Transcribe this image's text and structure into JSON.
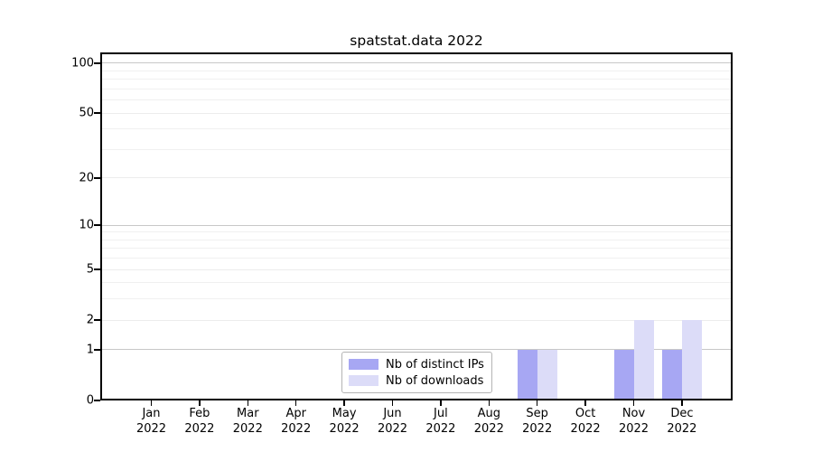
{
  "chart_data": {
    "type": "bar",
    "title": "spatstat.data 2022",
    "categories": [
      "Jan 2022",
      "Feb 2022",
      "Mar 2022",
      "Apr 2022",
      "May 2022",
      "Jun 2022",
      "Jul 2022",
      "Aug 2022",
      "Sep 2022",
      "Oct 2022",
      "Nov 2022",
      "Dec 2022"
    ],
    "series": [
      {
        "name": "Nb of distinct IPs",
        "color": "#a7a7f3",
        "values": [
          0,
          0,
          0,
          0,
          0,
          0,
          0,
          0,
          1,
          0,
          1,
          1
        ]
      },
      {
        "name": "Nb of downloads",
        "color": "#dcdcf8",
        "values": [
          0,
          0,
          0,
          0,
          0,
          0,
          0,
          0,
          1,
          0,
          2,
          2
        ]
      }
    ],
    "xlabel": "",
    "ylabel": "",
    "yscale": "log1p",
    "ylim": [
      0,
      115
    ],
    "y_ticks": [
      0,
      1,
      2,
      5,
      10,
      20,
      50,
      100
    ],
    "y_minor_gridlines": [
      3,
      4,
      6,
      7,
      8,
      9,
      30,
      40,
      60,
      70,
      80,
      90
    ],
    "grid": true,
    "legend_position": "lower center",
    "axis_color": "#000000",
    "grid_color_emphasis": "#c8c8c8",
    "grid_color_major": "#ececec",
    "grid_color_minor": "#f0f0f0"
  }
}
